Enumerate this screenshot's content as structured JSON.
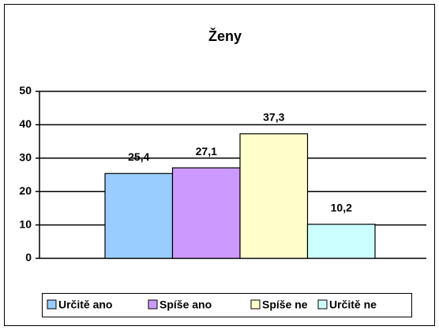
{
  "chart_data": {
    "type": "bar",
    "title": "Ženy",
    "categories": [
      null
    ],
    "series": [
      {
        "name": "Určitě ano",
        "color": "#99ccff",
        "values": [
          25.4
        ],
        "value_labels": [
          "25,4"
        ]
      },
      {
        "name": "Spíše ano",
        "color": "#cc99ff",
        "values": [
          27.1
        ],
        "value_labels": [
          "27,1"
        ]
      },
      {
        "name": "Spíše ne",
        "color": "#ffffcc",
        "values": [
          37.3
        ],
        "value_labels": [
          "37,3"
        ]
      },
      {
        "name": "Určitě ne",
        "color": "#ccffff",
        "values": [
          10.2
        ],
        "value_labels": [
          "10,2"
        ]
      }
    ],
    "ylim": [
      0,
      50
    ],
    "yticks": [
      0,
      10,
      20,
      30,
      40,
      50
    ],
    "grid": true,
    "legend": "bottom"
  }
}
